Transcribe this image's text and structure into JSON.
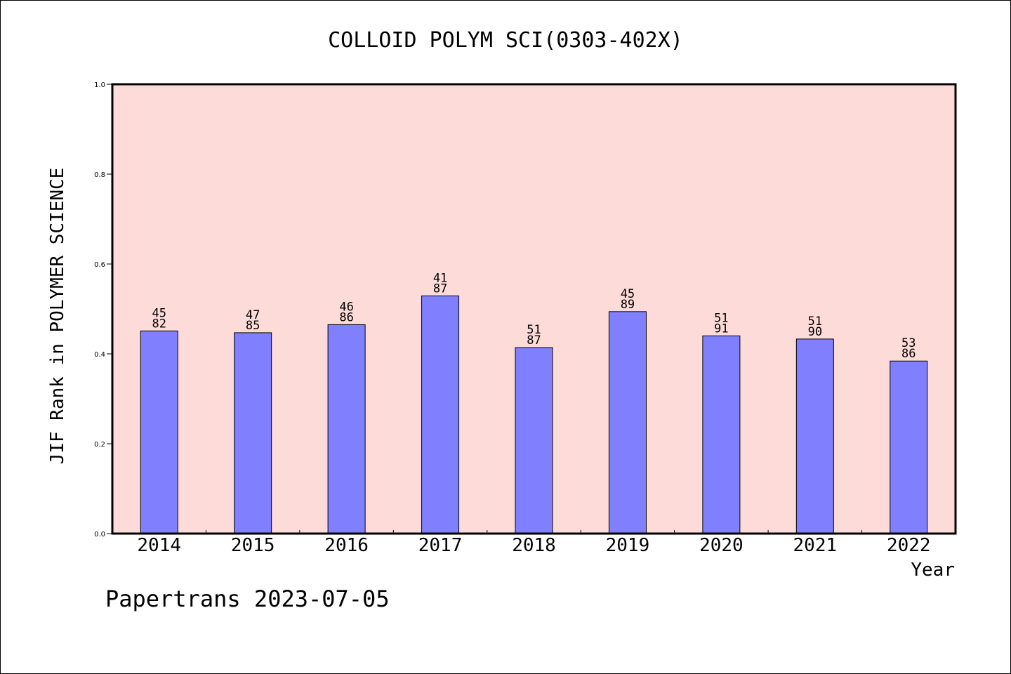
{
  "chart_data": {
    "type": "bar",
    "title": "COLLOID POLYM SCI(0303-402X)",
    "xlabel": "Year",
    "ylabel": "JIF Rank in POLYMER SCIENCE",
    "ylim": [
      0,
      1.0
    ],
    "yticks": [
      "0.0",
      "0.2",
      "0.4",
      "0.6",
      "0.8",
      "1.0"
    ],
    "grid": false,
    "categories": [
      "2014",
      "2015",
      "2016",
      "2017",
      "2018",
      "2019",
      "2020",
      "2021",
      "2022"
    ],
    "values": [
      0.451,
      0.447,
      0.465,
      0.529,
      0.414,
      0.494,
      0.44,
      0.433,
      0.384
    ],
    "bar_labels": [
      [
        "45",
        "82"
      ],
      [
        "47",
        "85"
      ],
      [
        "46",
        "86"
      ],
      [
        "41",
        "87"
      ],
      [
        "51",
        "87"
      ],
      [
        "45",
        "89"
      ],
      [
        "51",
        "91"
      ],
      [
        "51",
        "90"
      ],
      [
        "53",
        "86"
      ]
    ],
    "colors": {
      "plot_background": "#fddbd8",
      "bar": "#8080ff",
      "text": "#000000"
    }
  },
  "footer": {
    "credit": "Papertrans 2023-07-05"
  }
}
